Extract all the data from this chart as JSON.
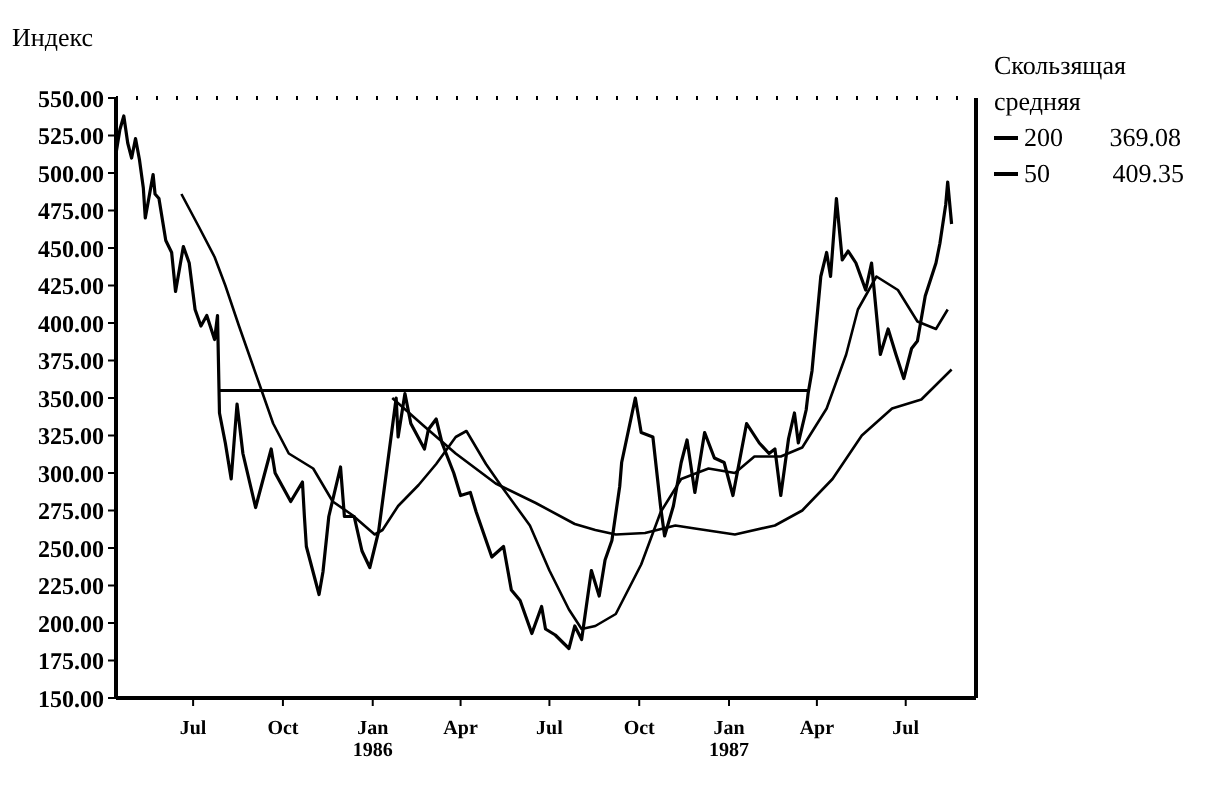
{
  "chart_data": {
    "type": "line",
    "ylabel": "Индекс",
    "legend_title": "Скользящая средняя",
    "legend": "right",
    "marker": "none",
    "line_style": "solid",
    "xlim": [
      "1985-04-13",
      "1987-09-11"
    ],
    "xticks": [
      {
        "value": "1985-07-01",
        "label": "Jul"
      },
      {
        "value": "1985-10-01",
        "label": "Oct"
      },
      {
        "value": "1986-01-01",
        "label": "Jan 1986"
      },
      {
        "value": "1986-04-01",
        "label": "Apr"
      },
      {
        "value": "1986-07-01",
        "label": "Jul"
      },
      {
        "value": "1986-10-01",
        "label": "Oct"
      },
      {
        "value": "1987-01-01",
        "label": "Jan 1987"
      },
      {
        "value": "1987-04-01",
        "label": "Apr"
      },
      {
        "value": "1987-07-01",
        "label": "Jul"
      }
    ],
    "ylim": [
      150,
      550
    ],
    "yticks": [
      {
        "value": 150,
        "label": "150.00"
      },
      {
        "value": 175,
        "label": "175.00"
      },
      {
        "value": 200,
        "label": "200.00"
      },
      {
        "value": 225,
        "label": "225.00"
      },
      {
        "value": 250,
        "label": "250.00"
      },
      {
        "value": 275,
        "label": "275.00"
      },
      {
        "value": 300,
        "label": "300.00"
      },
      {
        "value": 325,
        "label": "325.00"
      },
      {
        "value": 350,
        "label": "350.00"
      },
      {
        "value": 375,
        "label": "375.00"
      },
      {
        "value": 400,
        "label": "400.00"
      },
      {
        "value": 425,
        "label": "425.00"
      },
      {
        "value": 450,
        "label": "450.00"
      },
      {
        "value": 475,
        "label": "475.00"
      },
      {
        "value": 500,
        "label": "500.00"
      },
      {
        "value": 525,
        "label": "525.00"
      },
      {
        "value": 550,
        "label": "550.00"
      }
    ],
    "ref_lines": [
      {
        "axis": "y",
        "value": 550,
        "label": null,
        "color": "#000000",
        "line_style": "dotted"
      }
    ],
    "series": [
      {
        "color": "#000000",
        "x": [
          "1985-04-13",
          "1985-04-17",
          "1985-04-21",
          "1985-04-25",
          "1985-04-29",
          "1985-05-03",
          "1985-05-07",
          "1985-05-11",
          "1985-05-13",
          "1985-05-21",
          "1985-05-23",
          "1985-05-27",
          "1985-06-03",
          "1985-06-09",
          "1985-06-13",
          "1985-06-21",
          "1985-06-27",
          "1985-07-03",
          "1985-07-09",
          "1985-07-15",
          "1985-07-23",
          "1985-07-26",
          "1985-07-28",
          "1985-08-03",
          "1985-08-09",
          "1985-08-15",
          "1985-08-21",
          "1985-09-03",
          "1985-09-19",
          "1985-09-23",
          "1985-10-09",
          "1985-10-21",
          "1985-10-23",
          "1985-10-25",
          "1985-11-07",
          "1985-11-11",
          "1985-11-17",
          "1985-11-29",
          "1985-12-03",
          "1985-12-13",
          "1985-12-21",
          "1985-12-29",
          "1986-01-07",
          "1986-01-23",
          "1986-01-25",
          "1986-01-27",
          "1986-02-03",
          "1986-02-09",
          "1986-02-23",
          "1986-02-27",
          "1986-03-07",
          "1986-03-13",
          "1986-03-25",
          "1986-04-01",
          "1986-04-11",
          "1986-04-17",
          "1986-05-03",
          "1986-05-15",
          "1986-05-23",
          "1986-06-01",
          "1986-06-13",
          "1986-06-23",
          "1986-06-27",
          "1986-07-07",
          "1986-07-21",
          "1986-07-27",
          "1986-08-03",
          "1986-08-13",
          "1986-08-21",
          "1986-08-27",
          "1986-09-03",
          "1986-09-11",
          "1986-09-13",
          "1986-09-27",
          "1986-10-03",
          "1986-10-15",
          "1986-10-23",
          "1986-10-27",
          "1986-11-05",
          "1986-11-13",
          "1986-11-19",
          "1986-11-27",
          "1986-12-07",
          "1986-12-17",
          "1986-12-27",
          "1987-01-05",
          "1987-01-19",
          "1987-02-01",
          "1987-02-11",
          "1987-02-17",
          "1987-02-23",
          "1987-03-03",
          "1987-03-09",
          "1987-03-13",
          "1987-03-21",
          "1987-03-23",
          "1987-03-27",
          "1987-04-05",
          "1987-04-11",
          "1987-04-15",
          "1987-04-21",
          "1987-04-27",
          "1987-05-03",
          "1987-05-11",
          "1987-05-21",
          "1987-05-27",
          "1987-06-05",
          "1987-06-13",
          "1987-06-21",
          "1987-06-29",
          "1987-07-07",
          "1987-07-13",
          "1987-07-21",
          "1987-08-01",
          "1987-08-05",
          "1987-08-11",
          "1987-08-13",
          "1987-08-17"
        ],
        "values": [
          513,
          529,
          538,
          520,
          510,
          523,
          509,
          490,
          470,
          499,
          486,
          483,
          455,
          447,
          421,
          451,
          440,
          409,
          398,
          405,
          389,
          405,
          340,
          320,
          296,
          346,
          313,
          277,
          316,
          300,
          281,
          294,
          271,
          251,
          219,
          234,
          271,
          304,
          271,
          271,
          248,
          237,
          261,
          340,
          350,
          324,
          353,
          333,
          316,
          329,
          336,
          320,
          300,
          285,
          287,
          274,
          244,
          251,
          222,
          215,
          193,
          211,
          196,
          192,
          183,
          198,
          189,
          235,
          218,
          242,
          255,
          291,
          307,
          350,
          327,
          324,
          277,
          258,
          278,
          307,
          322,
          287,
          327,
          310,
          307,
          285,
          333,
          320,
          313,
          316,
          285,
          323,
          340,
          320,
          342,
          353,
          368,
          431,
          447,
          431,
          483,
          442,
          448,
          440,
          422,
          440,
          379,
          396,
          379,
          363,
          383,
          388,
          418,
          440,
          453,
          479,
          494,
          466
        ]
      },
      {
        "name": "200 369.08",
        "color": "#000000",
        "x": [
          "1986-01-21",
          "1986-02-23",
          "1986-03-27",
          "1986-05-07",
          "1986-06-17",
          "1986-07-27",
          "1986-08-17",
          "1986-09-07",
          "1986-10-07",
          "1986-11-07",
          "1986-11-27",
          "1987-01-07",
          "1987-02-17",
          "1987-03-17",
          "1987-04-17",
          "1987-05-17",
          "1987-06-17",
          "1987-07-17",
          "1987-08-17"
        ],
        "values": [
          350,
          331,
          313,
          293,
          280,
          266,
          262,
          259,
          260,
          265,
          263,
          259,
          265,
          275,
          296,
          325,
          343,
          349,
          369
        ]
      },
      {
        "name": "50 409.35",
        "color": "#000000",
        "x": [
          "1985-06-19",
          "1985-07-07",
          "1985-07-23",
          "1985-08-03",
          "1985-08-17",
          "1985-09-07",
          "1985-09-21",
          "1985-10-07",
          "1985-11-01",
          "1985-11-21",
          "1985-12-11",
          "1986-01-03",
          "1986-01-11",
          "1986-01-27",
          "1986-02-17",
          "1986-03-07",
          "1986-03-27",
          "1986-04-07",
          "1986-04-27",
          "1986-05-13",
          "1986-06-11",
          "1986-07-01",
          "1986-07-21",
          "1986-08-03",
          "1986-08-17",
          "1986-09-07",
          "1986-10-03",
          "1986-10-23",
          "1986-11-13",
          "1986-12-11",
          "1987-01-07",
          "1987-01-27",
          "1987-02-23",
          "1987-03-17",
          "1987-04-11",
          "1987-05-01",
          "1987-05-13",
          "1987-06-01",
          "1987-06-23",
          "1987-07-13",
          "1987-08-01",
          "1987-08-13"
        ],
        "values": [
          486,
          464,
          444,
          425,
          398,
          359,
          333,
          313,
          303,
          281,
          272,
          259,
          262,
          278,
          292,
          306,
          324,
          328,
          306,
          291,
          265,
          235,
          209,
          196,
          198,
          206,
          239,
          274,
          296,
          303,
          300,
          311,
          311,
          317,
          343,
          379,
          409,
          431,
          422,
          401,
          396,
          409
        ]
      },
      {
        "color": "#000000",
        "x": [
          "1985-07-27",
          "1987-03-23"
        ],
        "values": [
          355,
          355
        ]
      }
    ]
  }
}
